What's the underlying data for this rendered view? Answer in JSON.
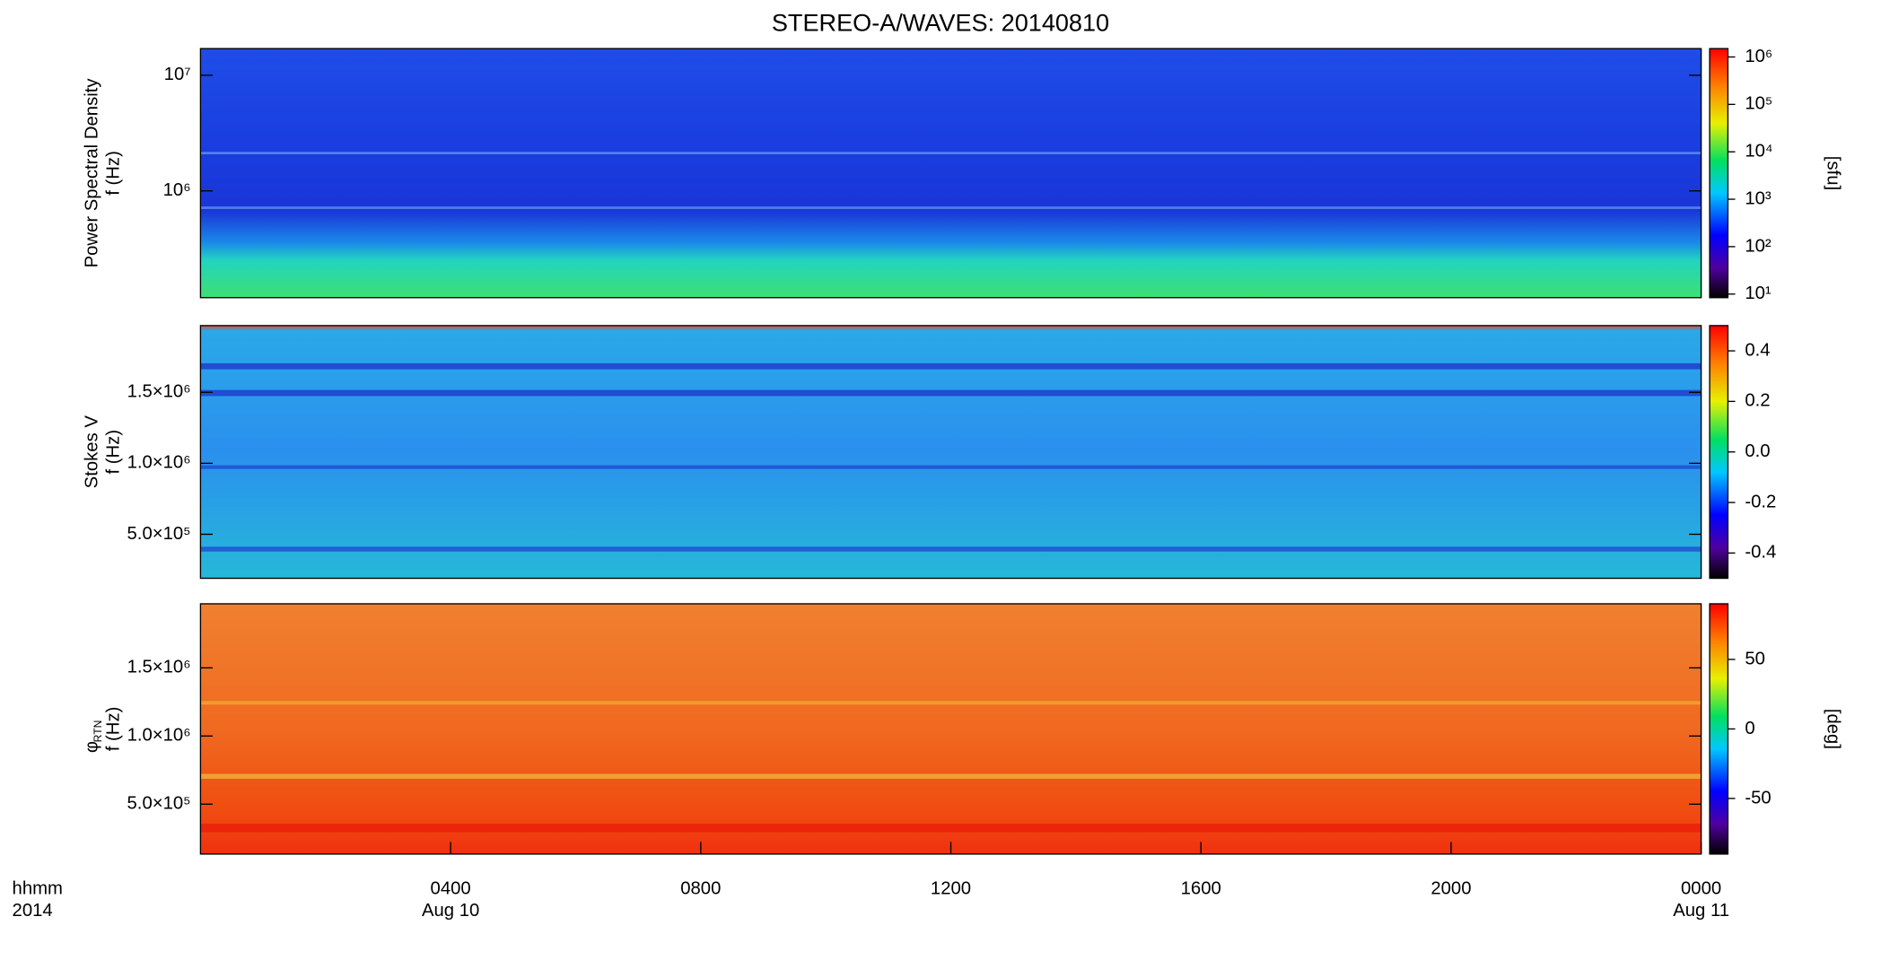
{
  "chart_data": [
    {
      "type": "spectrogram",
      "title": "STEREO-A/WAVES: 20140810",
      "ylabel": [
        "Power Spectral Density",
        "f (Hz)"
      ],
      "ylog": true,
      "ylim": [
        119000,
        17000000
      ],
      "yticks": [
        {
          "value": 1000000,
          "label": "10⁶"
        },
        {
          "value": 10000000,
          "label": "10⁷"
        }
      ],
      "colorbar_label": "[sfu]",
      "colorbar_log": true,
      "clim": [
        8.4,
        1500000
      ],
      "cticks": [
        {
          "value": 10,
          "label": "10¹"
        },
        {
          "value": 100,
          "label": "10²"
        },
        {
          "value": 1000,
          "label": "10³"
        },
        {
          "value": 10000,
          "label": "10⁴"
        },
        {
          "value": 100000,
          "label": "10⁵"
        },
        {
          "value": 1000000,
          "label": "10⁶"
        }
      ],
      "xlim": [
        0,
        24
      ]
    },
    {
      "type": "spectrogram",
      "ylabel": [
        "Stokes V",
        "f (Hz)"
      ],
      "ylog": false,
      "ylim": [
        190000,
        1970000
      ],
      "yticks": [
        {
          "value": 500000,
          "label": "5.0×10⁵"
        },
        {
          "value": 1000000,
          "label": "1.0×10⁶"
        },
        {
          "value": 1500000,
          "label": "1.5×10⁶"
        }
      ],
      "colorbar_log": false,
      "clim": [
        -0.5,
        0.5
      ],
      "cticks": [
        -0.4,
        -0.2,
        {
          "value": 0,
          "label": "0.0"
        },
        0.2,
        0.4
      ],
      "xlim": [
        0,
        24
      ]
    },
    {
      "type": "spectrogram",
      "ylabel": [
        "φ",
        "f (Hz)"
      ],
      "ylabel_sub": "RTN",
      "ylog": false,
      "ylim": [
        134000,
        1970000
      ],
      "yticks": [
        {
          "value": 500000,
          "label": "5.0×10⁵"
        },
        {
          "value": 1000000,
          "label": "1.0×10⁶"
        },
        {
          "value": 1500000,
          "label": "1.5×10⁶"
        }
      ],
      "colorbar_label": "[deg]",
      "colorbar_log": false,
      "clim": [
        -90,
        90
      ],
      "cticks": [
        -50,
        0,
        50
      ],
      "xlim": [
        0,
        24
      ],
      "xlabel": [
        "hhmm",
        "2014"
      ],
      "xticks": [
        {
          "value": 4,
          "label": "0400"
        },
        {
          "value": 8,
          "label": "0800"
        },
        {
          "value": 12,
          "label": "1200"
        },
        {
          "value": 16,
          "label": "1600"
        },
        {
          "value": 20,
          "label": "2000"
        },
        {
          "value": 24,
          "label": "0000"
        }
      ],
      "date_labels": [
        {
          "value": 4,
          "label": "Aug 10"
        },
        {
          "value": 24,
          "label": "Aug 11"
        }
      ]
    }
  ]
}
